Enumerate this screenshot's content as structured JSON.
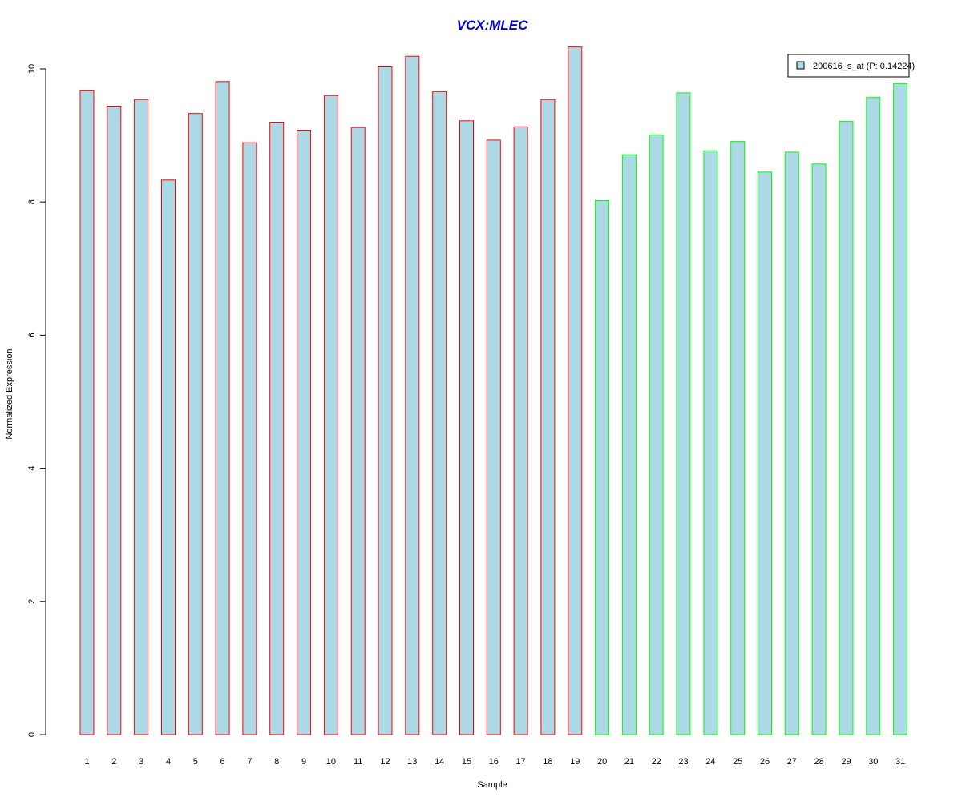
{
  "chart_data": {
    "type": "bar",
    "title": "VCX:MLEC",
    "xlabel": "Sample",
    "ylabel": "Normalized Expression",
    "ylim": [
      0,
      10.36
    ],
    "yticks": [
      "0",
      "2",
      "4",
      "6",
      "8",
      "10"
    ],
    "y_axis_ticks_at": [
      0,
      2,
      4,
      6,
      8,
      10
    ],
    "grid": false,
    "legend_position": "top-right",
    "categories": [
      "1",
      "2",
      "3",
      "4",
      "5",
      "6",
      "7",
      "8",
      "9",
      "10",
      "11",
      "12",
      "13",
      "14",
      "15",
      "16",
      "17",
      "18",
      "19",
      "20",
      "21",
      "22",
      "23",
      "24",
      "25",
      "26",
      "27",
      "28",
      "29",
      "30",
      "31"
    ],
    "series": [
      {
        "name": "200616_s_at (P: 0.14224)",
        "fill_color": "#add8e6",
        "values": [
          9.68,
          9.44,
          9.54,
          8.33,
          9.33,
          9.81,
          8.89,
          9.2,
          9.08,
          9.6,
          9.12,
          10.03,
          10.19,
          9.66,
          9.22,
          8.93,
          9.13,
          9.54,
          10.33,
          8.02,
          8.71,
          9.01,
          9.64,
          8.77,
          8.91,
          8.45,
          8.75,
          8.57,
          9.21,
          9.57,
          9.78
        ]
      }
    ],
    "bar_border_colors": [
      "#ff0000",
      "#ff0000",
      "#ff0000",
      "#ff0000",
      "#ff0000",
      "#ff0000",
      "#ff0000",
      "#ff0000",
      "#ff0000",
      "#ff0000",
      "#ff0000",
      "#ff0000",
      "#ff0000",
      "#ff0000",
      "#ff0000",
      "#ff0000",
      "#ff0000",
      "#ff0000",
      "#ff0000",
      "#00ff00",
      "#00ff00",
      "#00ff00",
      "#00ff00",
      "#00ff00",
      "#00ff00",
      "#00ff00",
      "#00ff00",
      "#00ff00",
      "#00ff00",
      "#00ff00",
      "#00ff00"
    ],
    "title_color": "#0000cc"
  }
}
